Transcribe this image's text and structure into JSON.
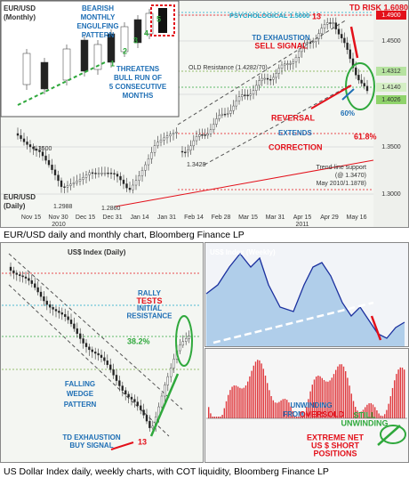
{
  "top": {
    "monthly_label": [
      "EUR/USD",
      "(Monthly)"
    ],
    "bearish": [
      "BEARISH",
      "MONTHLY",
      "ENGULFING",
      "PATTERN"
    ],
    "counts": [
      "1",
      "2",
      "3",
      "4",
      "5"
    ],
    "threatens": [
      "THREATENS",
      "BULL RUN OF",
      "5 CONSECUTIVE",
      "MONTHS"
    ],
    "psychological": "PSYCHOLOGICAL 1.5000",
    "count13": "13",
    "td_risk": "TD RISK 1.6080",
    "td_sell": [
      "TD EXHAUSTION",
      "SELL SIGNAL"
    ],
    "old_resistance": "OLD Resistance (1.4282/70)",
    "reversal": "REVERSAL",
    "extends": "EXTENDS",
    "correction": "CORRECTION",
    "pct60": "60%",
    "pct618": "61.8%",
    "levels": [
      "1.3500",
      "1.3428",
      "1.2988",
      "1.2860"
    ],
    "daily_label": [
      "EUR/USD",
      "(Daily)"
    ],
    "trendline": [
      "Trend-line support",
      "(@ 1.3470)",
      "May 2010/1.1878)"
    ],
    "y_axis": [
      "1.4900",
      "1.4500",
      "1.3500",
      "1.3000"
    ],
    "right_boxes": [
      "1.4312",
      "1.4140",
      "1.4026"
    ],
    "x_axis": [
      "Nov 15",
      "Nov 30",
      "Dec 15",
      "Dec 31",
      "Jan 14",
      "Jan 31",
      "Feb 14",
      "Feb 28",
      "Mar 15",
      "Mar 31",
      "Apr 15",
      "Apr 29",
      "May 16"
    ],
    "years": [
      "2010",
      "2011"
    ]
  },
  "top_caption": "EUR/USD daily and monthly chart, Bloomberg Finance LP",
  "bottom": {
    "daily_title": "US$ Index (Daily)",
    "rally": [
      "RALLY",
      "TESTS",
      "INITIAL",
      "RESISTANCE"
    ],
    "fib": "38.2%",
    "wedge": [
      "FALLING",
      "WEDGE",
      "PATTERN"
    ],
    "td_buy": [
      "TD EXHAUSTION",
      "BUY SIGNAL"
    ],
    "count13": "13",
    "weekly_title": "US$ Index (Weekly)",
    "unwinding": "UNWINDING",
    "from": "FROM",
    "oversold": "OVERSOLD",
    "still": [
      "STILL",
      "UNWINDING"
    ],
    "extreme": [
      "EXTREME NET",
      "US $ SHORT",
      "POSITIONS"
    ]
  },
  "bottom_caption": "US Dollar Index daily, weekly charts, with COT liquidity, Bloomberg Finance LP"
}
